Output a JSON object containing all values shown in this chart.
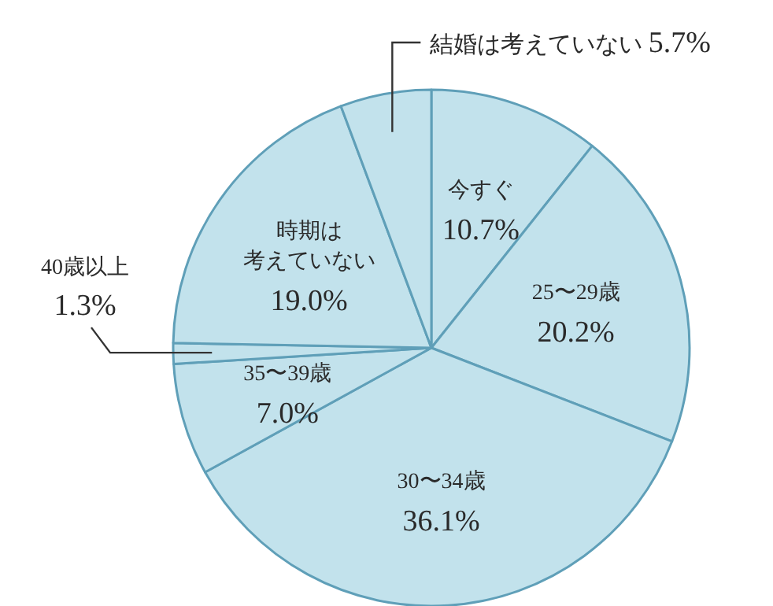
{
  "chart_data": {
    "type": "pie",
    "categories": [
      "今すぐ",
      "25〜29歳",
      "30〜34歳",
      "35〜39歳",
      "40歳以上",
      "時期は考えていない",
      "結婚は考えていない"
    ],
    "values": [
      10.7,
      20.2,
      36.1,
      7.0,
      1.3,
      19.0,
      5.7
    ],
    "colors": [
      "#c2e2ec",
      "#c2e2ec",
      "#c2e2ec",
      "#c2e2ec",
      "#c2e2ec",
      "#c2e2ec",
      "#c2e2ec"
    ],
    "value_labels": [
      "10.7%",
      "20.2%",
      "36.1%",
      "7.0%",
      "1.3%",
      "19.0%",
      "5.7%"
    ]
  }
}
